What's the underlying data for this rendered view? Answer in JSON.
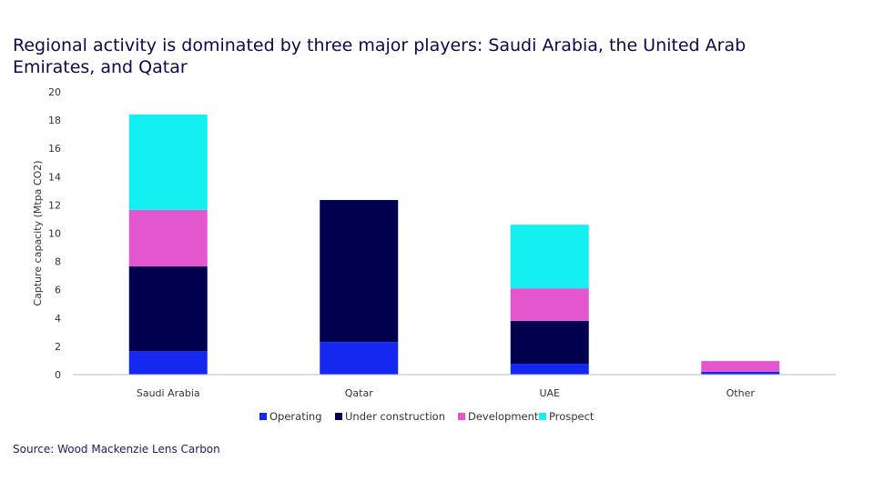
{
  "title": "Regional activity is dominated by three major players: Saudi Arabia, the United Arab Emirates, and Qatar",
  "source": "Source: Wood Mackenzie Lens Carbon",
  "chart_data": {
    "type": "bar",
    "stacked": true,
    "title": "Regional activity is dominated by three major players: Saudi Arabia, the United Arab Emirates, and Qatar",
    "xlabel": "",
    "ylabel": "Capture capacity (Mtpa CO2)",
    "ylim": [
      0,
      20
    ],
    "yticks": [
      0,
      2,
      4,
      6,
      8,
      10,
      12,
      14,
      16,
      18,
      20
    ],
    "grid": false,
    "legend": "bottom",
    "categories": [
      "Saudi Arabia",
      "Qatar",
      "UAE",
      "Other"
    ],
    "series": [
      {
        "name": "Operating",
        "color": "#1428F0",
        "values": [
          1.65,
          2.3,
          0.77,
          0.2
        ]
      },
      {
        "name": "Under construction",
        "color": "#00004F",
        "values": [
          6.0,
          10.05,
          3.03,
          0
        ]
      },
      {
        "name": "Development",
        "color": "#E356CE",
        "values": [
          4.0,
          0,
          2.3,
          0.76
        ]
      },
      {
        "name": "Prospect",
        "color": "#14F0F0",
        "values": [
          6.75,
          0,
          4.5,
          0
        ]
      }
    ]
  }
}
